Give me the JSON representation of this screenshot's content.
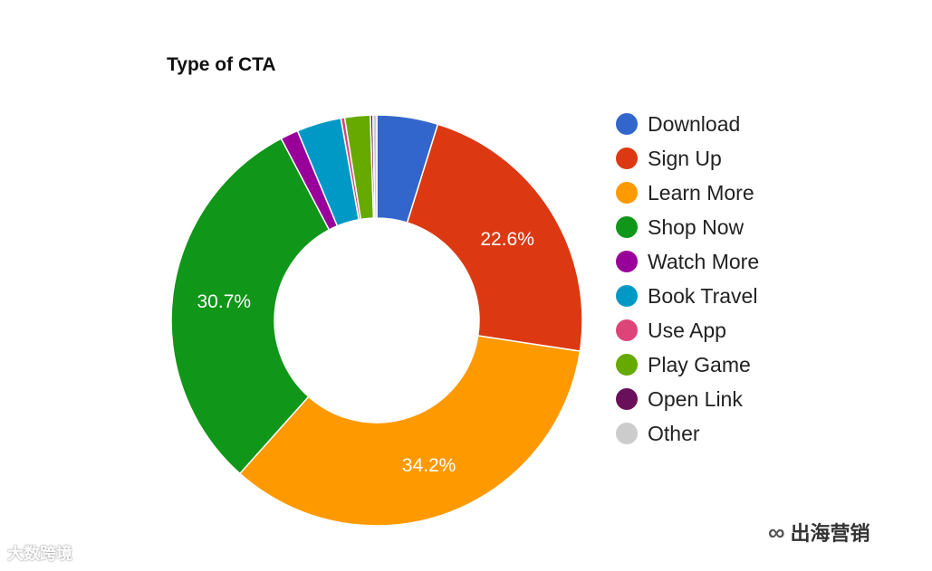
{
  "chart_data": {
    "type": "pie",
    "variant": "donut",
    "title": "Type of CTA",
    "slices": [
      {
        "label": "Download",
        "value": 4.8,
        "color": "#3366cc",
        "show_label": false
      },
      {
        "label": "Sign Up",
        "value": 22.6,
        "color": "#dc3912",
        "show_label": true
      },
      {
        "label": "Learn More",
        "value": 34.2,
        "color": "#ff9900",
        "show_label": true
      },
      {
        "label": "Shop Now",
        "value": 30.7,
        "color": "#109618",
        "show_label": true
      },
      {
        "label": "Watch More",
        "value": 1.4,
        "color": "#990099",
        "show_label": false
      },
      {
        "label": "Book Travel",
        "value": 3.5,
        "color": "#0099c6",
        "show_label": false
      },
      {
        "label": "Use App",
        "value": 0.3,
        "color": "#dd4477",
        "show_label": false
      },
      {
        "label": "Play Game",
        "value": 2.0,
        "color": "#66aa00",
        "show_label": false
      },
      {
        "label": "Open Link",
        "value": 0.2,
        "color": "#6a0f5a",
        "show_label": false
      },
      {
        "label": "Other",
        "value": 0.3,
        "color": "#cccccc",
        "show_label": false
      }
    ],
    "value_suffix": "%",
    "legend_position": "right"
  },
  "watermarks": {
    "left": "大数跨境",
    "right": "出海营销"
  }
}
